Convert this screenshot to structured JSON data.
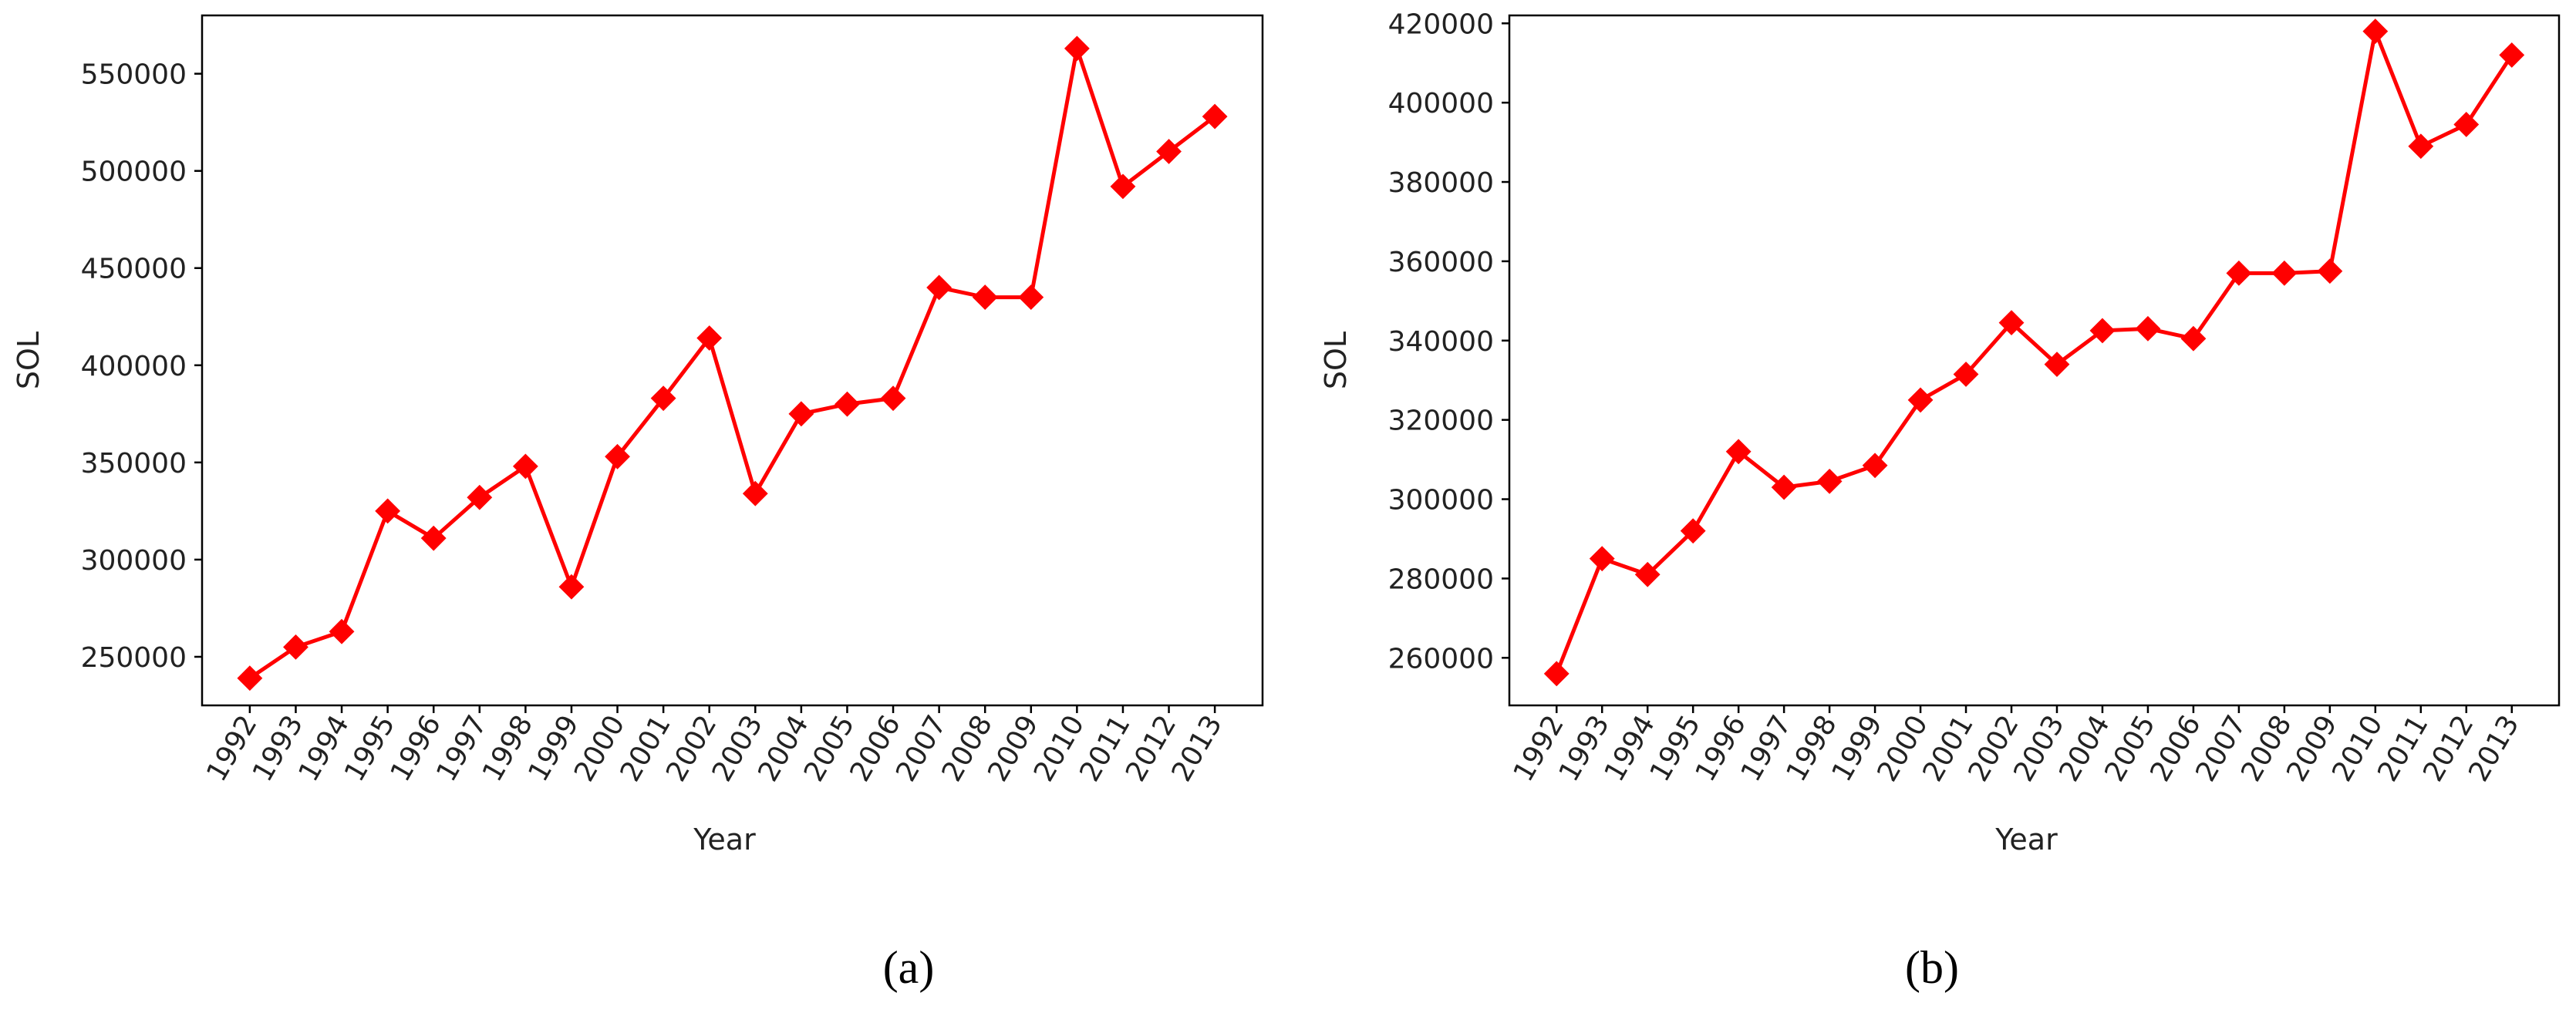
{
  "figure": {
    "colors": {
      "line": "#ff0000",
      "marker": "#ff0000",
      "axis": "#000000"
    }
  },
  "chart_data": [
    {
      "type": "line",
      "caption": "(a)",
      "xlabel": "Year",
      "ylabel": "SOL",
      "categories": [
        "1992",
        "1993",
        "1994",
        "1995",
        "1996",
        "1997",
        "1998",
        "1999",
        "2000",
        "2001",
        "2002",
        "2003",
        "2004",
        "2005",
        "2006",
        "2007",
        "2008",
        "2009",
        "2010",
        "2011",
        "2012",
        "2013"
      ],
      "series": [
        {
          "values": [
            239000,
            255000,
            263000,
            325000,
            311000,
            332000,
            348000,
            286000,
            353000,
            383000,
            414000,
            334000,
            375000,
            380000,
            383000,
            440000,
            435000,
            435000,
            563000,
            492000,
            510000,
            528000
          ]
        }
      ],
      "ylim": [
        225000,
        580000
      ],
      "yticks": [
        250000,
        300000,
        350000,
        400000,
        450000,
        500000,
        550000
      ],
      "ytick_labels": [
        "250000",
        "300000",
        "350000",
        "400000",
        "450000",
        "500000",
        "550000"
      ],
      "marker": "diamond",
      "grid": false
    },
    {
      "type": "line",
      "caption": "(b)",
      "xlabel": "Year",
      "ylabel": "SOL",
      "categories": [
        "1992",
        "1993",
        "1994",
        "1995",
        "1996",
        "1997",
        "1998",
        "1999",
        "2000",
        "2001",
        "2002",
        "2003",
        "2004",
        "2005",
        "2006",
        "2007",
        "2008",
        "2009",
        "2010",
        "2011",
        "2012",
        "2013"
      ],
      "series": [
        {
          "values": [
            256000,
            285000,
            281000,
            292000,
            312000,
            303000,
            304500,
            308500,
            325000,
            331500,
            344500,
            334000,
            342500,
            343000,
            340500,
            357000,
            357000,
            357500,
            418000,
            389000,
            394500,
            412000
          ]
        }
      ],
      "ylim": [
        248000,
        422000
      ],
      "yticks": [
        260000,
        280000,
        300000,
        320000,
        340000,
        360000,
        380000,
        400000,
        420000
      ],
      "ytick_labels": [
        "260000",
        "280000",
        "300000",
        "320000",
        "340000",
        "360000",
        "380000",
        "400000",
        "420000"
      ],
      "marker": "diamond",
      "grid": false
    }
  ]
}
